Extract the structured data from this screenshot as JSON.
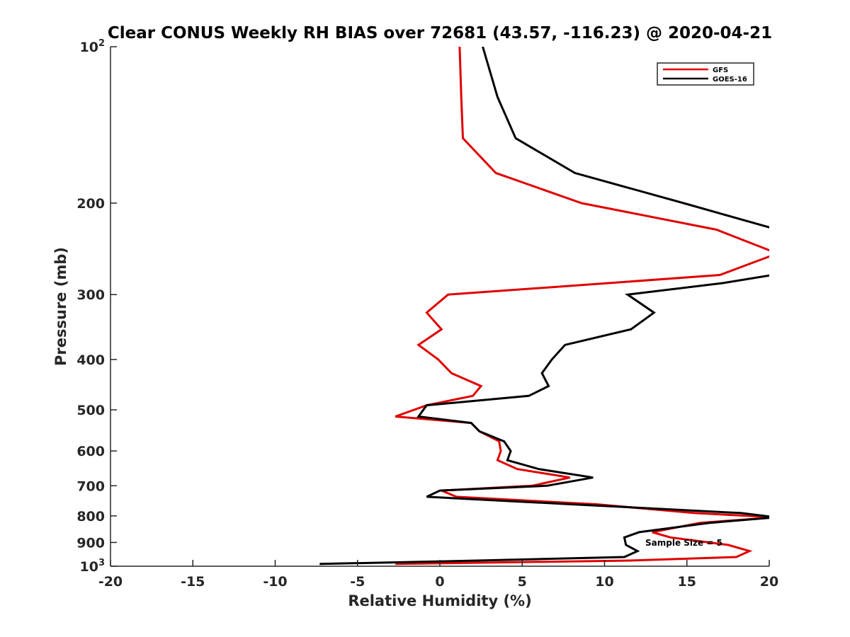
{
  "chart_data": {
    "type": "line",
    "title": "Clear CONUS Weekly RH BIAS over 72681 (43.57, -116.23) @ 2020-04-21",
    "xlabel": "Relative Humidity (%)",
    "ylabel": "Pressure (mb)",
    "xlim": [
      -20,
      20
    ],
    "ylim": [
      100,
      1000
    ],
    "y_scale": "log",
    "y_reversed": true,
    "grid": false,
    "legend_position": "top-right",
    "x_ticks": [
      -20,
      -15,
      -10,
      -5,
      0,
      5,
      10,
      15,
      20
    ],
    "x_tick_labels": [
      "-20",
      "-15",
      "-10",
      "-5",
      "0",
      "5",
      "10",
      "15",
      "20"
    ],
    "y_ticks": [
      100,
      200,
      300,
      400,
      500,
      600,
      700,
      800,
      900,
      1000
    ],
    "y_tick_labels": [
      {
        "base": "10",
        "exp": "2"
      },
      {
        "base": "200",
        "exp": ""
      },
      {
        "base": "300",
        "exp": ""
      },
      {
        "base": "400",
        "exp": ""
      },
      {
        "base": "500",
        "exp": ""
      },
      {
        "base": "600",
        "exp": ""
      },
      {
        "base": "700",
        "exp": ""
      },
      {
        "base": "800",
        "exp": ""
      },
      {
        "base": "900",
        "exp": ""
      },
      {
        "base": "10",
        "exp": "3"
      }
    ],
    "annotation": "Sample Size = 5",
    "series": [
      {
        "name": "GFS",
        "color": "#e00000",
        "points": [
          {
            "p": 100,
            "x": 1.2
          },
          {
            "p": 125,
            "x": 1.3
          },
          {
            "p": 150,
            "x": 1.4
          },
          {
            "p": 175,
            "x": 3.4
          },
          {
            "p": 200,
            "x": 8.6
          },
          {
            "p": 225,
            "x": 16.8
          },
          {
            "p": 250,
            "x": 20.5
          },
          {
            "p": 275,
            "x": 17.0
          },
          {
            "p": 285,
            "x": 10.3
          },
          {
            "p": 300,
            "x": 0.5
          },
          {
            "p": 325,
            "x": -0.8
          },
          {
            "p": 350,
            "x": 0.1
          },
          {
            "p": 375,
            "x": -1.3
          },
          {
            "p": 400,
            "x": -0.1
          },
          {
            "p": 425,
            "x": 0.7
          },
          {
            "p": 450,
            "x": 2.5
          },
          {
            "p": 470,
            "x": 2.0
          },
          {
            "p": 490,
            "x": -0.8
          },
          {
            "p": 515,
            "x": -2.7
          },
          {
            "p": 530,
            "x": 1.9
          },
          {
            "p": 550,
            "x": 2.4
          },
          {
            "p": 575,
            "x": 3.6
          },
          {
            "p": 600,
            "x": 3.7
          },
          {
            "p": 625,
            "x": 3.5
          },
          {
            "p": 650,
            "x": 4.7
          },
          {
            "p": 675,
            "x": 7.9
          },
          {
            "p": 700,
            "x": 5.6
          },
          {
            "p": 715,
            "x": 0.1
          },
          {
            "p": 735,
            "x": 1.0
          },
          {
            "p": 760,
            "x": 9.5
          },
          {
            "p": 790,
            "x": 15.5
          },
          {
            "p": 805,
            "x": 20.4
          },
          {
            "p": 825,
            "x": 15.8
          },
          {
            "p": 860,
            "x": 12.9
          },
          {
            "p": 880,
            "x": 14.0
          },
          {
            "p": 910,
            "x": 17.5
          },
          {
            "p": 935,
            "x": 18.8
          },
          {
            "p": 960,
            "x": 18.0
          },
          {
            "p": 975,
            "x": 11.7
          },
          {
            "p": 990,
            "x": -2.7
          }
        ]
      },
      {
        "name": "GOES-16",
        "color": "#000000",
        "points": [
          {
            "p": 100,
            "x": 2.6
          },
          {
            "p": 125,
            "x": 3.5
          },
          {
            "p": 150,
            "x": 4.6
          },
          {
            "p": 175,
            "x": 8.2
          },
          {
            "p": 200,
            "x": 14.8
          },
          {
            "p": 225,
            "x": 20.5
          },
          {
            "p": 250,
            "x": 21.5
          },
          {
            "p": 275,
            "x": 20.2
          },
          {
            "p": 285,
            "x": 17.2
          },
          {
            "p": 300,
            "x": 11.4
          },
          {
            "p": 325,
            "x": 13.0
          },
          {
            "p": 350,
            "x": 11.6
          },
          {
            "p": 375,
            "x": 7.6
          },
          {
            "p": 400,
            "x": 6.8
          },
          {
            "p": 425,
            "x": 6.2
          },
          {
            "p": 450,
            "x": 6.6
          },
          {
            "p": 470,
            "x": 5.4
          },
          {
            "p": 490,
            "x": -0.8
          },
          {
            "p": 515,
            "x": -1.3
          },
          {
            "p": 530,
            "x": 1.9
          },
          {
            "p": 550,
            "x": 2.4
          },
          {
            "p": 575,
            "x": 3.9
          },
          {
            "p": 600,
            "x": 4.3
          },
          {
            "p": 625,
            "x": 4.1
          },
          {
            "p": 650,
            "x": 6.0
          },
          {
            "p": 675,
            "x": 9.3
          },
          {
            "p": 700,
            "x": 6.5
          },
          {
            "p": 715,
            "x": 0.0
          },
          {
            "p": 735,
            "x": -0.8
          },
          {
            "p": 760,
            "x": 8.0
          },
          {
            "p": 790,
            "x": 18.3
          },
          {
            "p": 805,
            "x": 20.4
          },
          {
            "p": 825,
            "x": 16.4
          },
          {
            "p": 860,
            "x": 12.1
          },
          {
            "p": 880,
            "x": 11.2
          },
          {
            "p": 910,
            "x": 11.3
          },
          {
            "p": 935,
            "x": 12.0
          },
          {
            "p": 960,
            "x": 11.2
          },
          {
            "p": 975,
            "x": 2.5
          },
          {
            "p": 990,
            "x": -7.3
          }
        ]
      }
    ]
  }
}
